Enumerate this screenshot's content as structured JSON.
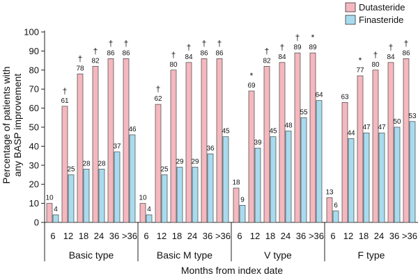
{
  "chart_data": {
    "type": "bar",
    "ylabel_lines": [
      "Percentage of patients with",
      "any BASP improvement"
    ],
    "xlabel": "Months from index date",
    "ylim": [
      0,
      100
    ],
    "yticks": [
      0,
      10,
      20,
      30,
      40,
      50,
      60,
      70,
      80,
      90,
      100
    ],
    "categories": [
      "6",
      "12",
      "18",
      "24",
      "36",
      ">36"
    ],
    "legend": {
      "position": "top-right",
      "entries": [
        {
          "name": "Dutasteride",
          "color": "#f4b8be"
        },
        {
          "name": "Finasteride",
          "color": "#a9dbef"
        }
      ]
    },
    "groups": [
      {
        "name": "Basic type",
        "dutasteride": [
          10,
          61,
          78,
          82,
          86,
          86
        ],
        "finasteride": [
          4,
          25,
          28,
          28,
          37,
          46
        ],
        "markers": [
          "",
          "†",
          "†",
          "†",
          "†",
          "†"
        ]
      },
      {
        "name": "Basic M type",
        "dutasteride": [
          10,
          62,
          80,
          84,
          86,
          86
        ],
        "finasteride": [
          4,
          25,
          29,
          29,
          36,
          45
        ],
        "markers": [
          "",
          "†",
          "†",
          "†",
          "†",
          "†"
        ]
      },
      {
        "name": "V type",
        "dutasteride": [
          18,
          69,
          82,
          84,
          89,
          89
        ],
        "finasteride": [
          9,
          39,
          45,
          48,
          55,
          64
        ],
        "markers": [
          "",
          "*",
          "†",
          "†",
          "†",
          "*"
        ]
      },
      {
        "name": "F type",
        "dutasteride": [
          13,
          63,
          77,
          80,
          84,
          86
        ],
        "finasteride": [
          6,
          44,
          47,
          47,
          50,
          53
        ],
        "markers": [
          "",
          "",
          "*",
          "†",
          "†",
          "†"
        ]
      }
    ]
  }
}
